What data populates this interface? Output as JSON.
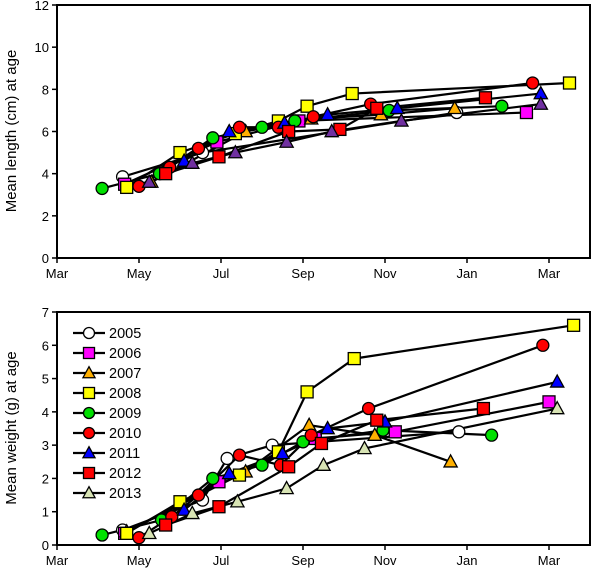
{
  "chart_data": [
    {
      "type": "line",
      "title": "",
      "xlabel": "",
      "ylabel": "Mean length (cm) at age",
      "x_unit": "months since 1 March",
      "xticks": [
        0,
        2,
        4,
        6,
        8,
        10,
        12
      ],
      "xtick_labels": [
        "Mar",
        "May",
        "Jul",
        "Sep",
        "Nov",
        "Jan",
        "Mar"
      ],
      "xlim": [
        0,
        13
      ],
      "ylim": [
        0,
        12
      ],
      "yticks": [
        0,
        2,
        4,
        6,
        8,
        10,
        12
      ],
      "ytick_labels": [
        "0",
        "2",
        "4",
        "6",
        "8",
        "10",
        "12"
      ],
      "grid": false,
      "legend": null,
      "series": [
        {
          "name": "2005",
          "x": [
            1.6,
            3.55,
            9.75
          ],
          "y": [
            3.85,
            5.0,
            6.9
          ]
        },
        {
          "name": "2006",
          "x": [
            1.65,
            3.9,
            5.9,
            11.45
          ],
          "y": [
            3.5,
            5.5,
            6.5,
            6.9
          ]
        },
        {
          "name": "2007",
          "x": [
            2.3,
            4.6,
            6.2,
            7.9,
            9.7
          ],
          "y": [
            3.6,
            6.0,
            6.6,
            6.8,
            7.1
          ]
        },
        {
          "name": "2008",
          "x": [
            1.7,
            3.0,
            4.35,
            5.4,
            6.1,
            7.2,
            12.5
          ],
          "y": [
            3.35,
            5.0,
            5.9,
            6.5,
            7.2,
            7.8,
            8.3
          ]
        },
        {
          "name": "2009",
          "x": [
            1.1,
            2.5,
            3.8,
            5.0,
            5.8,
            8.1,
            10.85
          ],
          "y": [
            3.3,
            4.0,
            5.7,
            6.2,
            6.5,
            7.0,
            7.2
          ]
        },
        {
          "name": "2010",
          "x": [
            2.0,
            2.75,
            3.45,
            4.45,
            5.4,
            6.25,
            7.65,
            11.6
          ],
          "y": [
            3.4,
            4.3,
            5.2,
            6.2,
            6.2,
            6.7,
            7.3,
            8.3
          ]
        },
        {
          "name": "2011",
          "x": [
            3.1,
            4.2,
            5.55,
            6.6,
            8.3,
            11.8
          ],
          "y": [
            4.6,
            6.0,
            6.4,
            6.8,
            7.1,
            7.8
          ]
        },
        {
          "name": "2012",
          "x": [
            2.65,
            3.95,
            5.65,
            6.9,
            7.8,
            10.45
          ],
          "y": [
            4.0,
            4.8,
            6.0,
            6.1,
            7.1,
            7.6
          ]
        },
        {
          "name": "2013",
          "x": [
            2.25,
            3.3,
            4.35,
            5.6,
            6.7,
            8.4,
            11.8
          ],
          "y": [
            3.6,
            4.5,
            5.0,
            5.5,
            6.0,
            6.5,
            7.3
          ]
        }
      ]
    },
    {
      "type": "line",
      "title": "",
      "xlabel": "",
      "ylabel": "Mean weight (g) at age",
      "x_unit": "months since 1 March",
      "xticks": [
        0,
        2,
        4,
        6,
        8,
        10,
        12
      ],
      "xtick_labels": [
        "Mar",
        "May",
        "Jul",
        "Sep",
        "Nov",
        "Jan",
        "Mar"
      ],
      "xlim": [
        0,
        13
      ],
      "ylim": [
        0,
        7
      ],
      "yticks": [
        0,
        1,
        2,
        3,
        4,
        5,
        6,
        7
      ],
      "ytick_labels": [
        "0",
        "1",
        "2",
        "3",
        "4",
        "5",
        "6",
        "7"
      ],
      "grid": false,
      "legend": "top-left",
      "series": [
        {
          "name": "2005",
          "marker": "circle",
          "color": "#ffffff",
          "x": [
            1.6,
            3.55,
            4.15,
            5.25,
            9.8
          ],
          "y": [
            0.45,
            1.35,
            2.6,
            3.0,
            3.4
          ]
        },
        {
          "name": "2006",
          "marker": "square",
          "color": "#ff00ff",
          "x": [
            1.65,
            3.95,
            6.3,
            8.25,
            12.0
          ],
          "y": [
            0.35,
            1.9,
            3.2,
            3.4,
            4.3
          ]
        },
        {
          "name": "2007",
          "marker": "triangle",
          "color": "#ffb000",
          "x": [
            1.7,
            4.6,
            6.15,
            7.75,
            9.6
          ],
          "y": [
            0.4,
            2.2,
            3.6,
            3.3,
            2.5
          ]
        },
        {
          "name": "2008",
          "marker": "square",
          "color": "#ffff00",
          "x": [
            1.7,
            3.0,
            4.45,
            5.4,
            6.1,
            7.25,
            12.6
          ],
          "y": [
            0.35,
            1.3,
            2.1,
            2.8,
            4.6,
            5.6,
            6.6
          ]
        },
        {
          "name": "2009",
          "marker": "circle",
          "color": "#00e000",
          "x": [
            1.1,
            2.55,
            3.8,
            5.0,
            6.0,
            7.95,
            10.6
          ],
          "y": [
            0.3,
            0.75,
            2.0,
            2.4,
            3.1,
            3.45,
            3.3
          ]
        },
        {
          "name": "2010",
          "marker": "circle",
          "color": "#ff0000",
          "x": [
            2.0,
            2.8,
            3.45,
            4.45,
            5.45,
            6.2,
            7.6,
            11.85
          ],
          "y": [
            0.22,
            0.85,
            1.5,
            2.7,
            2.4,
            3.3,
            4.1,
            6.0
          ]
        },
        {
          "name": "2011",
          "marker": "triangle",
          "color": "#0000ff",
          "x": [
            3.1,
            4.2,
            5.5,
            6.6,
            8.0,
            12.2
          ],
          "y": [
            1.05,
            2.15,
            2.75,
            3.5,
            3.7,
            4.9
          ]
        },
        {
          "name": "2012",
          "marker": "square",
          "color": "#ff0000",
          "x": [
            2.65,
            3.95,
            5.65,
            6.45,
            7.8,
            10.4
          ],
          "y": [
            0.6,
            1.15,
            2.35,
            3.05,
            3.75,
            4.1
          ]
        },
        {
          "name": "2013",
          "marker": "triangle",
          "color": "#d8e4b4",
          "x": [
            2.25,
            3.3,
            4.4,
            5.6,
            6.5,
            7.5,
            12.2
          ],
          "y": [
            0.35,
            0.95,
            1.3,
            1.7,
            2.4,
            2.9,
            4.1
          ]
        }
      ]
    }
  ],
  "legend": {
    "items": [
      {
        "label": "2005",
        "marker": "circle",
        "color": "#ffffff"
      },
      {
        "label": "2006",
        "marker": "square",
        "color": "#ff00ff"
      },
      {
        "label": "2007",
        "marker": "triangle",
        "color": "#ffb000"
      },
      {
        "label": "2008",
        "marker": "square",
        "color": "#ffff00"
      },
      {
        "label": "2009",
        "marker": "circle",
        "color": "#00e000"
      },
      {
        "label": "2010",
        "marker": "circle",
        "color": "#ff0000"
      },
      {
        "label": "2011",
        "marker": "triangle",
        "color": "#0000ff"
      },
      {
        "label": "2012",
        "marker": "square",
        "color": "#ff0000"
      },
      {
        "label": "2013",
        "marker": "triangle",
        "color": "#d8e4b4"
      }
    ]
  },
  "top_series_style": {
    "2005": {
      "marker": "circle",
      "color": "#ffffff"
    },
    "2006": {
      "marker": "square",
      "color": "#ff00ff"
    },
    "2007": {
      "marker": "triangle",
      "color": "#ffb000"
    },
    "2008": {
      "marker": "square",
      "color": "#ffff00"
    },
    "2009": {
      "marker": "circle",
      "color": "#00e000"
    },
    "2010": {
      "marker": "circle",
      "color": "#ff0000"
    },
    "2011": {
      "marker": "triangle",
      "color": "#0000ff"
    },
    "2012": {
      "marker": "square",
      "color": "#ff0000"
    },
    "2013": {
      "marker": "triangle",
      "color": "#7030a0"
    }
  }
}
